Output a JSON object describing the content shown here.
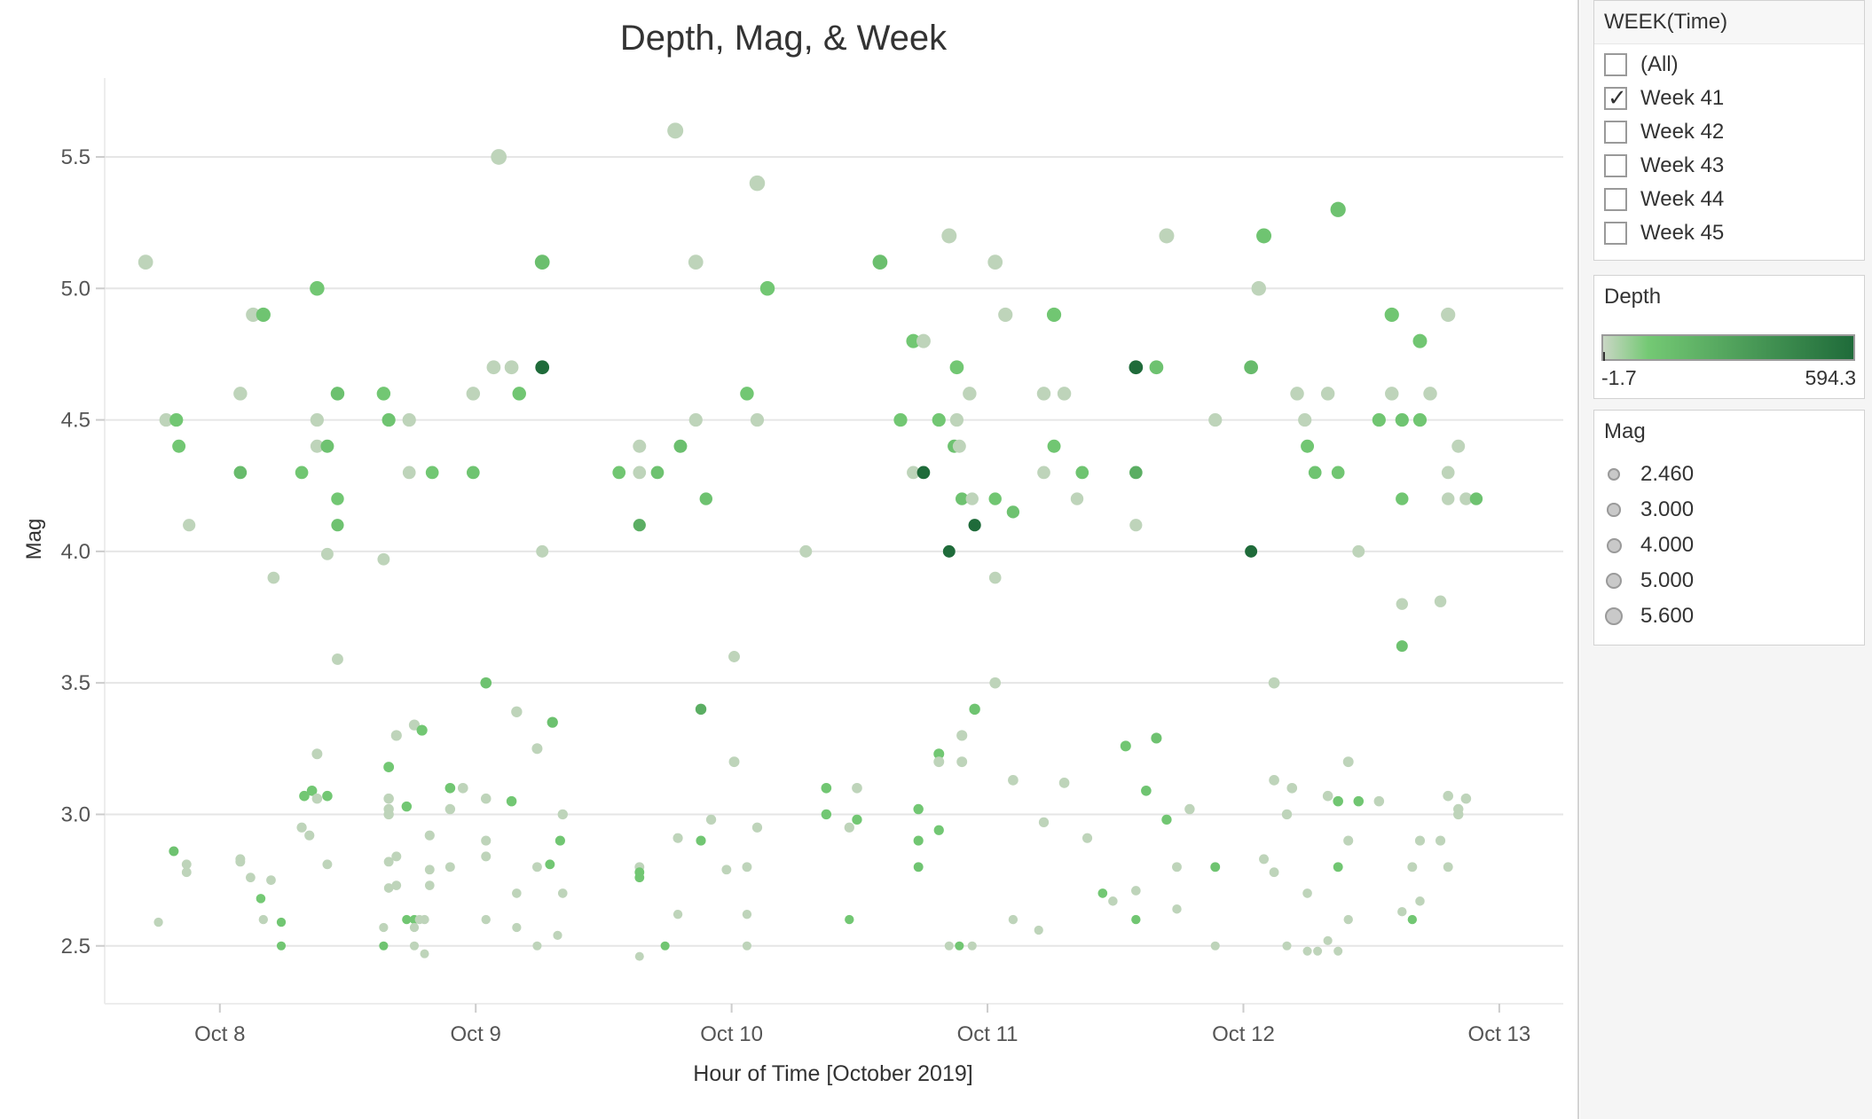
{
  "colors": {
    "depth_low": "#c9d6c4",
    "depth_mid": "#74c974",
    "depth_high": "#1f6b3a",
    "grid": "#e6e6e6",
    "axis_text": "#555555"
  },
  "chart_data": {
    "type": "scatter",
    "title": "Depth, Mag, & Week",
    "xlabel": "Hour of Time [October 2019]",
    "ylabel": "Mag",
    "x_ticks": [
      "Oct 8",
      "Oct 9",
      "Oct 10",
      "Oct 11",
      "Oct 12",
      "Oct 13"
    ],
    "x_tick_values": [
      8,
      9,
      10,
      11,
      12,
      13
    ],
    "x_unit": "day of October 2019 (fractional)",
    "xlim": [
      7.55,
      13.25
    ],
    "y_ticks": [
      "2.5",
      "3.0",
      "3.5",
      "4.0",
      "4.5",
      "5.0",
      "5.5"
    ],
    "y_tick_values": [
      2.5,
      3.0,
      3.5,
      4.0,
      4.5,
      5.0,
      5.5
    ],
    "ylim": [
      2.28,
      5.8
    ],
    "grid": "horizontal",
    "color_encoding": "Depth",
    "size_encoding": "Mag",
    "points": [
      [
        7.71,
        5.1,
        5
      ],
      [
        7.79,
        4.5,
        5
      ],
      [
        7.83,
        4.5,
        50
      ],
      [
        7.84,
        4.4,
        50
      ],
      [
        7.88,
        4.1,
        5
      ],
      [
        7.76,
        2.59,
        5
      ],
      [
        7.82,
        2.86,
        80
      ],
      [
        7.87,
        2.81,
        5
      ],
      [
        7.87,
        2.78,
        5
      ],
      [
        8.13,
        4.9,
        5
      ],
      [
        8.17,
        4.9,
        70
      ],
      [
        8.08,
        4.6,
        5
      ],
      [
        8.08,
        4.3,
        120
      ],
      [
        8.12,
        2.76,
        5
      ],
      [
        8.08,
        2.82,
        5
      ],
      [
        8.08,
        2.83,
        5
      ],
      [
        8.16,
        2.68,
        40
      ],
      [
        8.17,
        2.6,
        5
      ],
      [
        8.2,
        2.75,
        5
      ],
      [
        8.24,
        2.59,
        60
      ],
      [
        8.24,
        2.5,
        60
      ],
      [
        8.21,
        3.9,
        5
      ],
      [
        8.32,
        4.3,
        60
      ],
      [
        8.38,
        5.0,
        50
      ],
      [
        8.38,
        4.5,
        5
      ],
      [
        8.38,
        4.4,
        5
      ],
      [
        8.42,
        4.4,
        80
      ],
      [
        8.42,
        3.99,
        5
      ],
      [
        8.46,
        4.6,
        90
      ],
      [
        8.46,
        4.2,
        50
      ],
      [
        8.46,
        4.1,
        80
      ],
      [
        8.46,
        3.59,
        5
      ],
      [
        8.38,
        3.23,
        5
      ],
      [
        8.33,
        3.07,
        50
      ],
      [
        8.36,
        3.09,
        50
      ],
      [
        8.38,
        3.06,
        5
      ],
      [
        8.42,
        3.07,
        50
      ],
      [
        8.32,
        2.95,
        5
      ],
      [
        8.35,
        2.92,
        5
      ],
      [
        8.42,
        2.81,
        5
      ],
      [
        8.64,
        4.6,
        50
      ],
      [
        8.66,
        4.5,
        70
      ],
      [
        8.74,
        4.5,
        5
      ],
      [
        8.74,
        4.3,
        5
      ],
      [
        8.83,
        4.3,
        50
      ],
      [
        8.64,
        3.97,
        5
      ],
      [
        8.66,
        3.18,
        50
      ],
      [
        8.69,
        3.3,
        5
      ],
      [
        8.76,
        3.34,
        5
      ],
      [
        8.79,
        3.32,
        50
      ],
      [
        8.66,
        3.06,
        5
      ],
      [
        8.66,
        3.0,
        5
      ],
      [
        8.66,
        3.02,
        5
      ],
      [
        8.73,
        3.03,
        50
      ],
      [
        8.66,
        2.82,
        5
      ],
      [
        8.69,
        2.84,
        5
      ],
      [
        8.66,
        2.72,
        5
      ],
      [
        8.69,
        2.73,
        5
      ],
      [
        8.64,
        2.57,
        5
      ],
      [
        8.64,
        2.5,
        70
      ],
      [
        8.73,
        2.6,
        60
      ],
      [
        8.76,
        2.6,
        50
      ],
      [
        8.78,
        2.6,
        5
      ],
      [
        8.76,
        2.57,
        5
      ],
      [
        8.76,
        2.5,
        5
      ],
      [
        8.8,
        2.6,
        5
      ],
      [
        8.8,
        2.47,
        5
      ],
      [
        8.82,
        2.92,
        5
      ],
      [
        8.82,
        2.79,
        5
      ],
      [
        8.82,
        2.73,
        5
      ],
      [
        8.99,
        4.6,
        5
      ],
      [
        9.07,
        4.7,
        5
      ],
      [
        9.14,
        4.7,
        5
      ],
      [
        9.17,
        4.6,
        60
      ],
      [
        8.99,
        4.3,
        70
      ],
      [
        9.09,
        5.5,
        5
      ],
      [
        9.26,
        5.1,
        100
      ],
      [
        9.26,
        4.7,
        594
      ],
      [
        9.26,
        4.0,
        5
      ],
      [
        9.04,
        3.5,
        80
      ],
      [
        9.16,
        3.39,
        5
      ],
      [
        9.3,
        3.35,
        90
      ],
      [
        9.24,
        3.25,
        5
      ],
      [
        8.9,
        3.1,
        60
      ],
      [
        8.95,
        3.1,
        5
      ],
      [
        9.04,
        3.06,
        5
      ],
      [
        9.14,
        3.05,
        50
      ],
      [
        8.9,
        3.02,
        5
      ],
      [
        9.34,
        3.0,
        5
      ],
      [
        8.9,
        2.8,
        5
      ],
      [
        9.04,
        2.84,
        5
      ],
      [
        9.04,
        2.9,
        5
      ],
      [
        9.24,
        2.8,
        5
      ],
      [
        9.29,
        2.81,
        50
      ],
      [
        9.33,
        2.9,
        60
      ],
      [
        9.34,
        2.7,
        5
      ],
      [
        9.16,
        2.7,
        5
      ],
      [
        9.04,
        2.6,
        5
      ],
      [
        9.16,
        2.57,
        5
      ],
      [
        9.24,
        2.5,
        5
      ],
      [
        9.32,
        2.54,
        5
      ],
      [
        9.56,
        4.3,
        60
      ],
      [
        9.64,
        4.4,
        5
      ],
      [
        9.64,
        4.3,
        5
      ],
      [
        9.71,
        4.3,
        80
      ],
      [
        9.8,
        4.4,
        100
      ],
      [
        9.64,
        4.1,
        200
      ],
      [
        9.86,
        4.5,
        5
      ],
      [
        9.78,
        5.6,
        5
      ],
      [
        9.86,
        5.1,
        5
      ],
      [
        9.9,
        4.2,
        80
      ],
      [
        9.88,
        3.4,
        200
      ],
      [
        9.79,
        2.62,
        5
      ],
      [
        9.79,
        2.91,
        5
      ],
      [
        9.88,
        2.9,
        60
      ],
      [
        9.92,
        2.98,
        5
      ],
      [
        9.64,
        2.8,
        5
      ],
      [
        9.64,
        2.78,
        50
      ],
      [
        9.64,
        2.76,
        50
      ],
      [
        9.64,
        2.46,
        5
      ],
      [
        9.74,
        2.5,
        60
      ],
      [
        10.01,
        3.6,
        5
      ],
      [
        10.01,
        3.2,
        5
      ],
      [
        9.98,
        2.79,
        5
      ],
      [
        10.06,
        2.8,
        5
      ],
      [
        10.06,
        2.62,
        5
      ],
      [
        10.06,
        2.5,
        5
      ],
      [
        10.1,
        2.95,
        5
      ],
      [
        10.06,
        4.6,
        50
      ],
      [
        10.1,
        4.5,
        5
      ],
      [
        10.1,
        5.4,
        5
      ],
      [
        10.14,
        5.0,
        50
      ],
      [
        10.29,
        4.0,
        5
      ],
      [
        10.37,
        3.1,
        60
      ],
      [
        10.37,
        3.0,
        50
      ],
      [
        10.46,
        2.95,
        5
      ],
      [
        10.46,
        2.6,
        50
      ],
      [
        10.49,
        2.98,
        50
      ],
      [
        10.49,
        3.1,
        5
      ],
      [
        10.58,
        5.1,
        100
      ],
      [
        10.66,
        4.5,
        50
      ],
      [
        10.71,
        4.8,
        50
      ],
      [
        10.71,
        4.3,
        5
      ],
      [
        10.75,
        4.8,
        5
      ],
      [
        10.75,
        4.3,
        594
      ],
      [
        10.73,
        3.02,
        50
      ],
      [
        10.73,
        2.9,
        60
      ],
      [
        10.73,
        2.8,
        70
      ],
      [
        10.81,
        3.23,
        50
      ],
      [
        10.81,
        3.2,
        5
      ],
      [
        10.81,
        2.94,
        50
      ],
      [
        10.81,
        4.5,
        50
      ],
      [
        10.85,
        5.2,
        5
      ],
      [
        10.88,
        4.5,
        5
      ],
      [
        10.88,
        4.7,
        50
      ],
      [
        10.87,
        4.4,
        80
      ],
      [
        10.89,
        4.4,
        5
      ],
      [
        10.9,
        4.2,
        80
      ],
      [
        10.93,
        4.6,
        5
      ],
      [
        10.94,
        4.2,
        5
      ],
      [
        10.95,
        4.1,
        594
      ],
      [
        10.85,
        4.0,
        594
      ],
      [
        10.95,
        3.4,
        70
      ],
      [
        10.9,
        3.3,
        5
      ],
      [
        10.9,
        3.2,
        5
      ],
      [
        10.85,
        2.5,
        5
      ],
      [
        10.89,
        2.5,
        60
      ],
      [
        10.94,
        2.5,
        5
      ],
      [
        11.03,
        5.1,
        5
      ],
      [
        11.03,
        4.2,
        60
      ],
      [
        11.03,
        3.9,
        5
      ],
      [
        11.03,
        3.5,
        5
      ],
      [
        11.07,
        4.9,
        5
      ],
      [
        11.1,
        4.15,
        80
      ],
      [
        11.1,
        3.13,
        5
      ],
      [
        11.1,
        2.6,
        5
      ],
      [
        11.2,
        2.56,
        5
      ],
      [
        11.22,
        2.97,
        5
      ],
      [
        11.22,
        4.6,
        5
      ],
      [
        11.22,
        4.3,
        5
      ],
      [
        11.26,
        4.9,
        60
      ],
      [
        11.26,
        4.4,
        60
      ],
      [
        11.3,
        4.6,
        5
      ],
      [
        11.3,
        3.12,
        5
      ],
      [
        11.35,
        4.2,
        5
      ],
      [
        11.37,
        4.3,
        70
      ],
      [
        11.39,
        2.91,
        5
      ],
      [
        11.45,
        2.7,
        50
      ],
      [
        11.49,
        2.67,
        5
      ],
      [
        11.54,
        3.26,
        60
      ],
      [
        11.58,
        4.7,
        594
      ],
      [
        11.58,
        4.3,
        200
      ],
      [
        11.58,
        4.1,
        5
      ],
      [
        11.58,
        2.71,
        5
      ],
      [
        11.58,
        2.6,
        60
      ],
      [
        11.62,
        3.09,
        70
      ],
      [
        11.66,
        4.7,
        80
      ],
      [
        11.66,
        3.29,
        80
      ],
      [
        11.7,
        5.2,
        5
      ],
      [
        11.7,
        2.98,
        60
      ],
      [
        11.74,
        2.8,
        5
      ],
      [
        11.74,
        2.64,
        5
      ],
      [
        11.79,
        3.02,
        5
      ],
      [
        11.89,
        4.5,
        5
      ],
      [
        11.89,
        2.8,
        70
      ],
      [
        11.89,
        2.5,
        5
      ],
      [
        12.03,
        4.7,
        120
      ],
      [
        12.03,
        4.0,
        594
      ],
      [
        12.06,
        5.0,
        5
      ],
      [
        12.08,
        5.2,
        70
      ],
      [
        12.08,
        2.83,
        5
      ],
      [
        12.12,
        3.5,
        5
      ],
      [
        12.12,
        3.13,
        5
      ],
      [
        12.12,
        2.78,
        5
      ],
      [
        12.17,
        3.0,
        5
      ],
      [
        12.17,
        2.5,
        5
      ],
      [
        12.19,
        3.1,
        5
      ],
      [
        12.21,
        4.6,
        5
      ],
      [
        12.24,
        4.5,
        5
      ],
      [
        12.25,
        4.4,
        60
      ],
      [
        12.28,
        4.3,
        70
      ],
      [
        12.25,
        2.7,
        5
      ],
      [
        12.25,
        2.48,
        5
      ],
      [
        12.29,
        2.48,
        5
      ],
      [
        12.33,
        2.52,
        5
      ],
      [
        12.33,
        3.07,
        5
      ],
      [
        12.33,
        4.6,
        5
      ],
      [
        12.37,
        5.3,
        80
      ],
      [
        12.37,
        4.3,
        60
      ],
      [
        12.37,
        3.05,
        60
      ],
      [
        12.37,
        2.8,
        60
      ],
      [
        12.37,
        2.48,
        5
      ],
      [
        12.41,
        3.2,
        5
      ],
      [
        12.41,
        2.9,
        5
      ],
      [
        12.41,
        2.6,
        5
      ],
      [
        12.45,
        3.05,
        60
      ],
      [
        12.45,
        4.0,
        5
      ],
      [
        12.53,
        3.05,
        5
      ],
      [
        12.53,
        4.5,
        60
      ],
      [
        12.58,
        4.9,
        60
      ],
      [
        12.58,
        4.6,
        5
      ],
      [
        12.62,
        4.5,
        70
      ],
      [
        12.62,
        4.2,
        60
      ],
      [
        12.62,
        3.8,
        5
      ],
      [
        12.62,
        3.64,
        80
      ],
      [
        12.62,
        2.63,
        5
      ],
      [
        12.66,
        2.8,
        5
      ],
      [
        12.66,
        2.6,
        50
      ],
      [
        12.69,
        4.8,
        60
      ],
      [
        12.69,
        4.5,
        60
      ],
      [
        12.69,
        2.9,
        5
      ],
      [
        12.69,
        2.67,
        5
      ],
      [
        12.73,
        4.6,
        5
      ],
      [
        12.77,
        3.81,
        5
      ],
      [
        12.77,
        2.9,
        5
      ],
      [
        12.8,
        4.9,
        5
      ],
      [
        12.8,
        4.3,
        5
      ],
      [
        12.8,
        4.2,
        5
      ],
      [
        12.8,
        3.07,
        5
      ],
      [
        12.8,
        2.8,
        5
      ],
      [
        12.84,
        4.4,
        5
      ],
      [
        12.84,
        3.02,
        5
      ],
      [
        12.84,
        3.0,
        5
      ],
      [
        12.87,
        4.2,
        5
      ],
      [
        12.87,
        3.06,
        5
      ],
      [
        12.91,
        4.2,
        80
      ]
    ]
  },
  "week_filter": {
    "title": "WEEK(Time)",
    "options": [
      {
        "label": "(All)",
        "checked": false
      },
      {
        "label": "Week 41",
        "checked": true
      },
      {
        "label": "Week 42",
        "checked": false
      },
      {
        "label": "Week 43",
        "checked": false
      },
      {
        "label": "Week 44",
        "checked": false
      },
      {
        "label": "Week 45",
        "checked": false
      }
    ],
    "checkmark": "✓"
  },
  "depth_legend": {
    "title": "Depth",
    "min": "-1.7",
    "max": "594.3"
  },
  "mag_legend": {
    "title": "Mag",
    "items": [
      "2.460",
      "3.000",
      "4.000",
      "5.000",
      "5.600"
    ]
  }
}
